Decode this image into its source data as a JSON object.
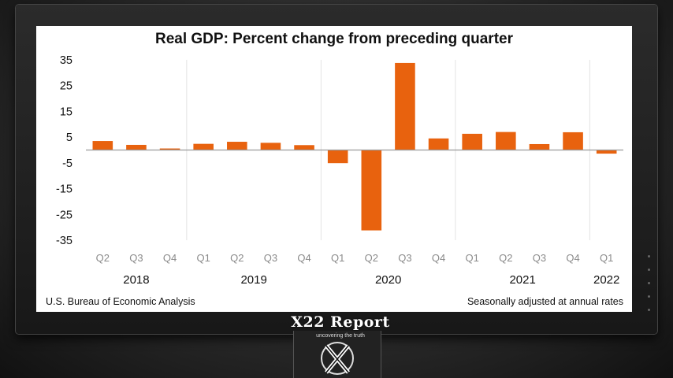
{
  "chart_data": {
    "type": "bar",
    "title": "Real GDP:  Percent change from preceding quarter",
    "quarters": [
      "Q2",
      "Q3",
      "Q4",
      "Q1",
      "Q2",
      "Q3",
      "Q4",
      "Q1",
      "Q2",
      "Q3",
      "Q4",
      "Q1",
      "Q2",
      "Q3",
      "Q4",
      "Q1"
    ],
    "years": [
      {
        "label": "2018",
        "start": 0,
        "end": 2
      },
      {
        "label": "2019",
        "start": 3,
        "end": 6
      },
      {
        "label": "2020",
        "start": 7,
        "end": 10
      },
      {
        "label": "2021",
        "start": 11,
        "end": 14
      },
      {
        "label": "2022",
        "start": 15,
        "end": 15
      }
    ],
    "values": [
      3.5,
      2.0,
      0.6,
      2.4,
      3.2,
      2.8,
      1.9,
      -5.1,
      -31.2,
      33.8,
      4.5,
      6.3,
      7.0,
      2.3,
      6.9,
      -1.4
    ],
    "ylim": [
      -35,
      35
    ],
    "yticks": [
      35,
      25,
      15,
      5,
      -5,
      -15,
      -25,
      -35
    ],
    "bar_color": "#e8620e",
    "source": "U.S. Bureau of Economic Analysis",
    "note": "Seasonally adjusted at annual rates"
  },
  "brand": {
    "name": "X22 Report",
    "tagline": "uncovering the truth"
  }
}
